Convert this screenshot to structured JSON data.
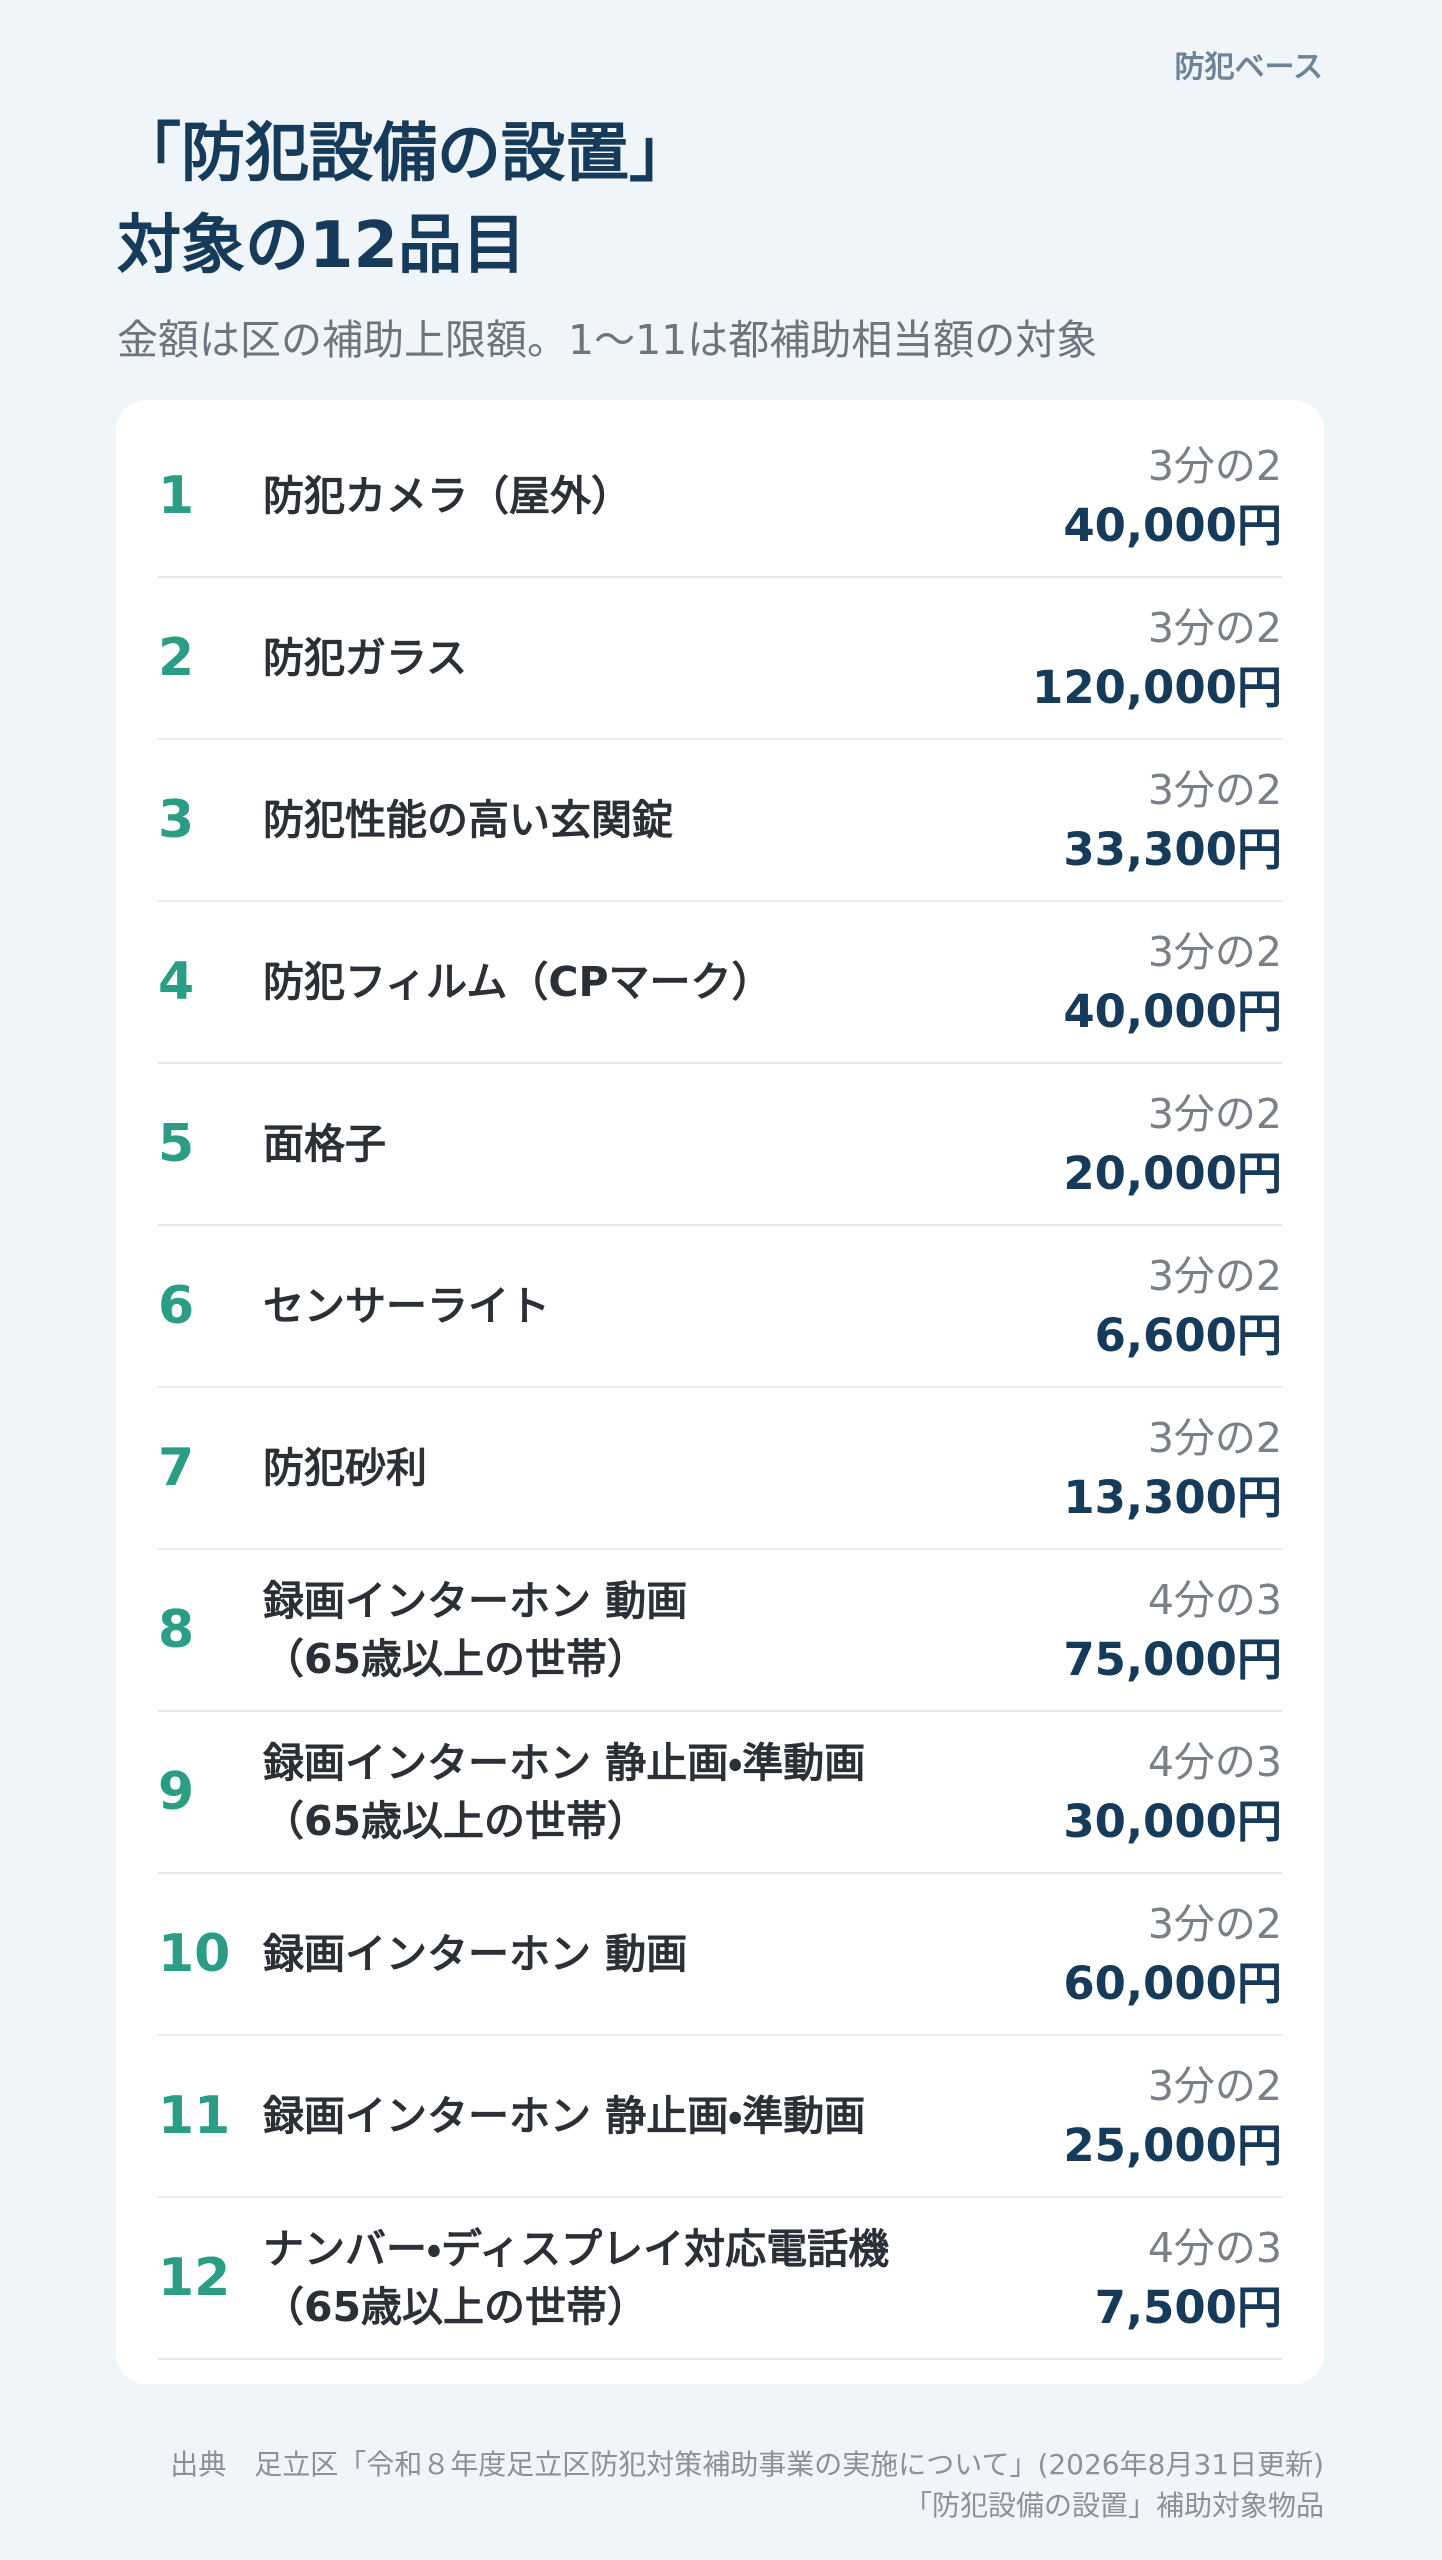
{
  "brand": "防犯ベース",
  "title": [
    "「防犯設備の設置」",
    "対象の12品目"
  ],
  "subtitle": "金額は区の補助上限額。1〜11は都補助相当額の対象",
  "items": [
    {
      "number": "1",
      "name": [
        "防犯カメラ（屋外）"
      ],
      "rate": "3分の2",
      "amount": "40,000円"
    },
    {
      "number": "2",
      "name": [
        "防犯ガラス"
      ],
      "rate": "3分の2",
      "amount": "120,000円"
    },
    {
      "number": "3",
      "name": [
        "防犯性能の高い玄関錠"
      ],
      "rate": "3分の2",
      "amount": "33,300円"
    },
    {
      "number": "4",
      "name": [
        "防犯フィルム（CPマーク）"
      ],
      "rate": "3分の2",
      "amount": "40,000円"
    },
    {
      "number": "5",
      "name": [
        "面格子"
      ],
      "rate": "3分の2",
      "amount": "20,000円"
    },
    {
      "number": "6",
      "name": [
        "センサーライト"
      ],
      "rate": "3分の2",
      "amount": "6,600円"
    },
    {
      "number": "7",
      "name": [
        "防犯砂利"
      ],
      "rate": "3分の2",
      "amount": "13,300円"
    },
    {
      "number": "8",
      "name": [
        "録画インターホン 動画",
        "（65歳以上の世帯）"
      ],
      "rate": "4分の3",
      "amount": "75,000円"
    },
    {
      "number": "9",
      "name": [
        "録画インターホン 静止画・準動画",
        "（65歳以上の世帯）"
      ],
      "rate": "4分の3",
      "amount": "30,000円"
    },
    {
      "number": "10",
      "name": [
        "録画インターホン 動画"
      ],
      "rate": "3分の2",
      "amount": "60,000円"
    },
    {
      "number": "11",
      "name": [
        "録画インターホン 静止画・準動画"
      ],
      "rate": "3分の2",
      "amount": "25,000円"
    },
    {
      "number": "12",
      "name": [
        "ナンバー・ディスプレイ対応電話機",
        "（65歳以上の世帯）"
      ],
      "rate": "4分の3",
      "amount": "7,500円"
    }
  ],
  "footer": [
    "出典　足立区「令和８年度足立区防犯対策補助事業の実施について」(2026年8月31日更新)",
    "「防犯設備の設置」補助対象物品"
  ]
}
